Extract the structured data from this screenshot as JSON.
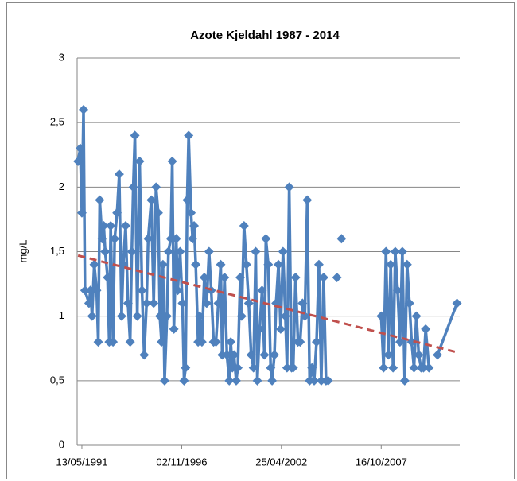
{
  "chart_data": {
    "type": "line",
    "title": "Azote Kjeldahl 1987 - 2014",
    "y_label": "mg/L",
    "x": [
      1991.15,
      1991.27,
      1991.36,
      1991.45,
      1991.53,
      1991.75,
      1991.83,
      1991.92,
      1992.04,
      1992.17,
      1992.26,
      1992.34,
      1992.47,
      1992.56,
      1992.64,
      1992.77,
      1992.86,
      1992.94,
      1993.07,
      1993.16,
      1993.29,
      1993.41,
      1993.54,
      1993.63,
      1993.76,
      1993.89,
      1994.01,
      1994.1,
      1994.18,
      1994.27,
      1994.4,
      1994.53,
      1994.66,
      1994.78,
      1994.91,
      1995.0,
      1995.17,
      1995.3,
      1995.43,
      1995.55,
      1995.64,
      1995.73,
      1995.81,
      1995.9,
      1996.03,
      1996.11,
      1996.24,
      1996.32,
      1996.41,
      1996.54,
      1996.62,
      1996.75,
      1996.88,
      1996.97,
      1997.05,
      1997.14,
      1997.22,
      1997.35,
      1997.44,
      1997.52,
      1997.61,
      1997.74,
      1997.82,
      1997.95,
      1998.08,
      1998.21,
      1998.34,
      1998.46,
      1998.59,
      1998.72,
      1998.85,
      1998.98,
      1999.06,
      1999.19,
      1999.32,
      1999.45,
      1999.53,
      1999.62,
      1999.71,
      1999.83,
      1999.92,
      2000.05,
      2000.13,
      2000.26,
      2000.39,
      2000.52,
      2000.65,
      2000.78,
      2000.9,
      2000.99,
      2001.12,
      2001.25,
      2001.38,
      2001.46,
      2001.59,
      2001.72,
      2001.8,
      2001.93,
      2002.02,
      2002.15,
      2002.27,
      2002.4,
      2002.53,
      2002.62,
      2002.74,
      2002.87,
      2002.96,
      2003.09,
      2003.22,
      2003.34,
      2003.47,
      2003.6,
      2003.73,
      2003.86,
      2003.99,
      2004.11,
      2004.24,
      2004.37,
      2004.5,
      2004.63,
      2004.76,
      2004.88,
      2005.1,
      2005.36,
      2005.48,
      2005.61,
      2006.68,
      2007.79,
      2007.92,
      2008.05,
      2008.18,
      2008.31,
      2008.44,
      2008.56,
      2008.69,
      2008.82,
      2008.95,
      2009.08,
      2009.21,
      2009.34,
      2009.46,
      2009.59,
      2009.72,
      2009.85,
      2009.98,
      2010.11,
      2010.23,
      2010.41,
      2010.62,
      2010.88,
      2011.95
    ],
    "series": [
      {
        "color": "#4f81bd",
        "values": [
          2.2,
          2.3,
          1.8,
          2.6,
          1.2,
          1.1,
          1.2,
          1.0,
          1.4,
          1.2,
          0.8,
          1.9,
          1.6,
          1.7,
          1.5,
          1.3,
          0.8,
          1.7,
          0.8,
          1.6,
          1.8,
          2.1,
          1.0,
          1.4,
          1.7,
          1.1,
          0.8,
          1.5,
          2.0,
          2.4,
          1.0,
          2.2,
          1.2,
          0.7,
          1.1,
          1.6,
          1.9,
          1.1,
          2.0,
          1.8,
          1.0,
          0.8,
          1.4,
          0.5,
          1.0,
          1.5,
          1.6,
          2.2,
          0.9,
          1.6,
          1.2,
          1.5,
          1.1,
          0.5,
          0.6,
          1.9,
          2.4,
          1.8,
          1.6,
          1.7,
          1.4,
          0.8,
          1.0,
          0.8,
          1.3,
          1.1,
          1.5,
          1.2,
          0.8,
          0.8,
          1.1,
          1.4,
          0.7,
          1.3,
          0.7,
          0.5,
          0.8,
          0.6,
          0.7,
          0.5,
          0.6,
          1.3,
          1.0,
          1.7,
          1.4,
          1.1,
          0.7,
          0.6,
          1.5,
          0.5,
          0.9,
          1.2,
          0.7,
          1.6,
          1.4,
          0.6,
          0.5,
          0.7,
          1.1,
          1.4,
          0.9,
          1.5,
          1.0,
          0.6,
          2.0,
          0.6,
          0.6,
          1.3,
          0.8,
          0.8,
          1.1,
          1.0,
          1.9,
          0.5,
          0.6,
          0.5,
          0.8,
          1.4,
          0.5,
          1.3,
          0.5,
          0.5,
          null,
          1.3,
          null,
          1.6,
          null,
          1.0,
          0.6,
          1.5,
          0.7,
          1.4,
          0.6,
          1.5,
          1.2,
          0.8,
          1.5,
          0.5,
          1.4,
          1.1,
          0.8,
          0.6,
          1.0,
          0.7,
          0.6,
          0.6,
          0.9,
          0.6,
          null,
          0.7,
          1.1
        ]
      }
    ],
    "trendline": {
      "x": [
        1991.15,
        2011.95
      ],
      "values": [
        1.47,
        0.72
      ],
      "color": "#c0504d"
    },
    "xlim": [
      1991.1,
      2012.1
    ],
    "xticks": [
      {
        "value": 1991.36,
        "label": "13/05/1991"
      },
      {
        "value": 1996.84,
        "label": "02/11/1996"
      },
      {
        "value": 2002.31,
        "label": "25/04/2002"
      },
      {
        "value": 2007.79,
        "label": "16/10/2007"
      }
    ],
    "ylim": [
      0,
      3
    ],
    "yticks": [
      0,
      {
        "value": 0.5,
        "label": "0,5"
      },
      1,
      {
        "value": 1.5,
        "label": "1,5"
      },
      2,
      {
        "value": 2.5,
        "label": "2,5"
      },
      3
    ],
    "grid": true
  }
}
